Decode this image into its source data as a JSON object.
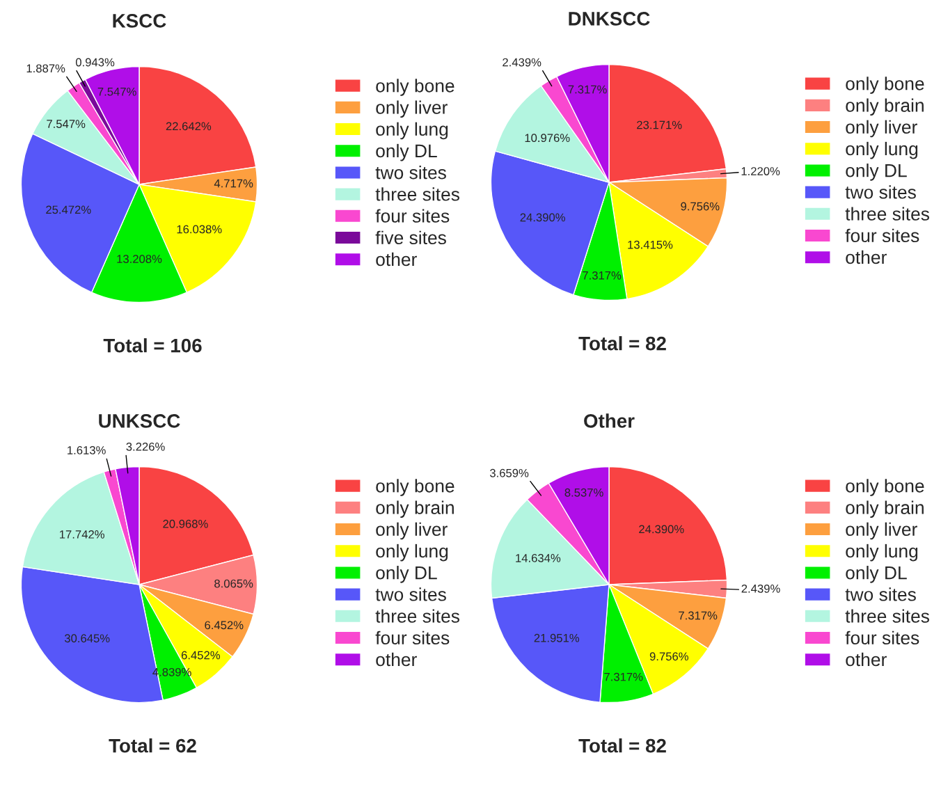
{
  "chart_data": [
    {
      "type": "pie",
      "title": "KSCC",
      "legend": "right",
      "annotations": [
        "Total = 106"
      ],
      "categories": [
        "only bone",
        "only liver",
        "only lung",
        "only DL",
        "two sites",
        "three sites",
        "four sites",
        "five sites",
        "other"
      ],
      "values": [
        22.642,
        4.717,
        16.038,
        13.208,
        25.472,
        7.547,
        1.887,
        0.943,
        7.547
      ],
      "value_labels": [
        "22.642%",
        "4.717%",
        "16.038%",
        "13.208%",
        "25.472%",
        "7.547%",
        "1.887%",
        "0.943%",
        "7.547%"
      ],
      "colors": [
        "#f94343",
        "#fd9f3f",
        "#ffff00",
        "#00f000",
        "#5757f9",
        "#b3f5e0",
        "#f948d0",
        "#7a0a9a",
        "#b00ee8"
      ]
    },
    {
      "type": "pie",
      "title": "DNKSCC",
      "legend": "right",
      "annotations": [
        "Total = 82"
      ],
      "categories": [
        "only bone",
        "only brain",
        "only liver",
        "only lung",
        "only DL",
        "two sites",
        "three sites",
        "four sites",
        "other"
      ],
      "values": [
        23.171,
        1.22,
        9.756,
        13.415,
        7.317,
        24.39,
        10.976,
        2.439,
        7.317
      ],
      "value_labels": [
        "23.171%",
        "1.220%",
        "9.756%",
        "13.415%",
        "7.317%",
        "24.390%",
        "10.976%",
        "2.439%",
        "7.317%"
      ],
      "colors": [
        "#f94343",
        "#fd8080",
        "#fd9f3f",
        "#ffff00",
        "#00f000",
        "#5757f9",
        "#b3f5e0",
        "#f948d0",
        "#b00ee8"
      ]
    },
    {
      "type": "pie",
      "title": "UNKSCC",
      "legend": "right",
      "annotations": [
        "Total = 62"
      ],
      "categories": [
        "only bone",
        "only brain",
        "only liver",
        "only lung",
        "only DL",
        "two sites",
        "three sites",
        "four sites",
        "other"
      ],
      "values": [
        20.968,
        8.065,
        6.452,
        6.452,
        4.839,
        30.645,
        17.742,
        1.613,
        3.226
      ],
      "value_labels": [
        "20.968%",
        "8.065%",
        "6.452%",
        "6.452%",
        "4.839%",
        "30.645%",
        "17.742%",
        "1.613%",
        "3.226%"
      ],
      "colors": [
        "#f94343",
        "#fd8080",
        "#fd9f3f",
        "#ffff00",
        "#00f000",
        "#5757f9",
        "#b3f5e0",
        "#f948d0",
        "#b00ee8"
      ]
    },
    {
      "type": "pie",
      "title": "Other",
      "legend": "right",
      "annotations": [
        "Total = 82"
      ],
      "categories": [
        "only bone",
        "only brain",
        "only liver",
        "only lung",
        "only DL",
        "two sites",
        "three sites",
        "four sites",
        "other"
      ],
      "values": [
        24.39,
        2.439,
        7.317,
        9.756,
        7.317,
        21.951,
        14.634,
        3.659,
        8.537
      ],
      "value_labels": [
        "24.390%",
        "2.439%",
        "7.317%",
        "9.756%",
        "7.317%",
        "21.951%",
        "14.634%",
        "3.659%",
        "8.537%"
      ],
      "colors": [
        "#f94343",
        "#fd8080",
        "#fd9f3f",
        "#ffff00",
        "#00f000",
        "#5757f9",
        "#b3f5e0",
        "#f948d0",
        "#b00ee8"
      ]
    }
  ]
}
